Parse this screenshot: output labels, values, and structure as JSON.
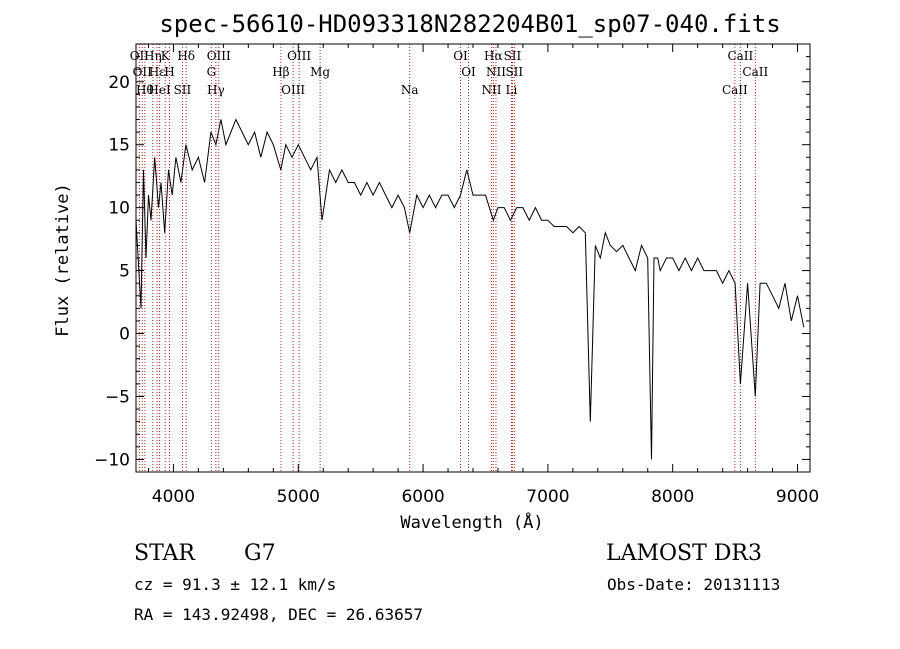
{
  "chart_data": {
    "type": "line",
    "title": "spec-56610-HD093318N282204B01_sp07-040.fits",
    "xlabel": "Wavelength (Å)",
    "ylabel": "Flux (relative)",
    "xlim": [
      3700,
      9100
    ],
    "ylim": [
      -11,
      23
    ],
    "xticks": [
      4000,
      5000,
      6000,
      7000,
      8000,
      9000
    ],
    "yticks": [
      -10,
      -5,
      0,
      5,
      10,
      15,
      20
    ],
    "grid": false,
    "series": [
      {
        "name": "flux",
        "x": [
          3700,
          3740,
          3760,
          3780,
          3800,
          3820,
          3850,
          3880,
          3900,
          3930,
          3960,
          3990,
          4020,
          4060,
          4100,
          4150,
          4200,
          4250,
          4300,
          4340,
          4380,
          4420,
          4460,
          4500,
          4550,
          4600,
          4650,
          4700,
          4750,
          4800,
          4860,
          4900,
          4950,
          5000,
          5050,
          5100,
          5150,
          5190,
          5250,
          5300,
          5350,
          5400,
          5450,
          5500,
          5550,
          5600,
          5650,
          5700,
          5750,
          5800,
          5850,
          5893,
          5950,
          6000,
          6050,
          6100,
          6150,
          6200,
          6250,
          6300,
          6350,
          6400,
          6450,
          6500,
          6563,
          6600,
          6650,
          6700,
          6750,
          6800,
          6850,
          6900,
          6950,
          7000,
          7050,
          7100,
          7150,
          7200,
          7250,
          7300,
          7340,
          7380,
          7420,
          7460,
          7500,
          7550,
          7600,
          7650,
          7700,
          7750,
          7800,
          7830,
          7850,
          7880,
          7900,
          7950,
          8000,
          8050,
          8100,
          8150,
          8200,
          8250,
          8300,
          8350,
          8400,
          8450,
          8500,
          8542,
          8600,
          8662,
          8700,
          8750,
          8800,
          8850,
          8900,
          8950,
          9000,
          9050
        ],
        "y": [
          9,
          2,
          13,
          6,
          11,
          9,
          14,
          10,
          12,
          8,
          13,
          11,
          14,
          12,
          15,
          13,
          14,
          12,
          16,
          15,
          17,
          15,
          16,
          17,
          16,
          15,
          16,
          14,
          16,
          15,
          13,
          15,
          14,
          15,
          14,
          13,
          14,
          9,
          13,
          12,
          13,
          12,
          12,
          11,
          12,
          11,
          12,
          11,
          10,
          11,
          10,
          8,
          11,
          10,
          11,
          10,
          11,
          11,
          10,
          11,
          13,
          11,
          11,
          11,
          9,
          10,
          10,
          9,
          10,
          10,
          9,
          10,
          9,
          9,
          8.5,
          8.5,
          8.5,
          8,
          8.5,
          8,
          -7,
          7,
          6,
          8,
          7,
          6.5,
          7,
          6,
          5,
          7,
          6,
          -10,
          6,
          6,
          5,
          6,
          6,
          5,
          6,
          5,
          6,
          5,
          5,
          5,
          4,
          5,
          4,
          -4,
          4,
          -5,
          4,
          4,
          3,
          2,
          4,
          1,
          3,
          0.5
        ]
      }
    ],
    "line_markers": [
      {
        "wavelength": 3727,
        "label": "OII"
      },
      {
        "wavelength": 3750,
        "label": "OII"
      },
      {
        "wavelength": 3771,
        "label": "Hθ"
      },
      {
        "wavelength": 3835,
        "label": "Hη"
      },
      {
        "wavelength": 3869,
        "label": "Hε"
      },
      {
        "wavelength": 3889,
        "label": "HeI"
      },
      {
        "wavelength": 3934,
        "label": "K"
      },
      {
        "wavelength": 3968,
        "label": "H"
      },
      {
        "wavelength": 4072,
        "label": "SII"
      },
      {
        "wavelength": 4102,
        "label": "Hδ"
      },
      {
        "wavelength": 4304,
        "label": "G"
      },
      {
        "wavelength": 4340,
        "label": "Hγ"
      },
      {
        "wavelength": 4363,
        "label": "OIII"
      },
      {
        "wavelength": 4861,
        "label": "Hβ"
      },
      {
        "wavelength": 4959,
        "label": "OIII"
      },
      {
        "wavelength": 5007,
        "label": "OIII"
      },
      {
        "wavelength": 5175,
        "label": "Mg"
      },
      {
        "wavelength": 5893,
        "label": "Na"
      },
      {
        "wavelength": 6300,
        "label": "OI"
      },
      {
        "wavelength": 6364,
        "label": "OI"
      },
      {
        "wavelength": 6548,
        "label": "NII"
      },
      {
        "wavelength": 6563,
        "label": "Hα"
      },
      {
        "wavelength": 6584,
        "label": "NII"
      },
      {
        "wavelength": 6708,
        "label": "Li"
      },
      {
        "wavelength": 6716,
        "label": "SII"
      },
      {
        "wavelength": 6731,
        "label": "SII"
      },
      {
        "wavelength": 8498,
        "label": "CaII"
      },
      {
        "wavelength": 8542,
        "label": "CaII"
      },
      {
        "wavelength": 8662,
        "label": "CaII"
      }
    ]
  },
  "info": {
    "class_label": "STAR",
    "subclass": "G7",
    "survey": "LAMOST DR3",
    "cz": "cz = 91.3 ± 12.1 km/s",
    "obs_date": "Obs-Date: 20131113",
    "radec": "RA = 143.92498, DEC =  26.63657"
  },
  "colors": {
    "marker_line": "#b22222",
    "spectrum": "#000000",
    "axes": "#000000"
  }
}
